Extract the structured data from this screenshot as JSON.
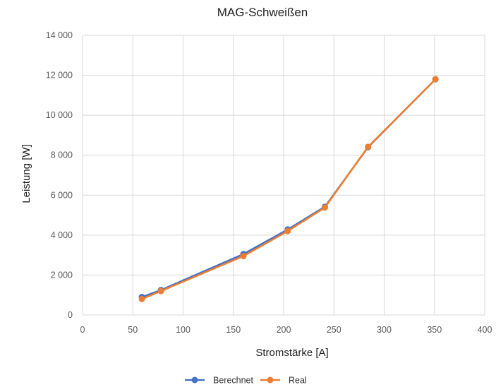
{
  "chart_data": {
    "type": "line",
    "title": "MAG-Schweißen",
    "xlabel": "Stromstärke [A]",
    "ylabel": "Leistung [W]",
    "xlim": [
      0,
      400
    ],
    "ylim": [
      0,
      14000
    ],
    "xticks": [
      0,
      50,
      100,
      150,
      200,
      250,
      300,
      350,
      400
    ],
    "yticks": [
      0,
      2000,
      4000,
      6000,
      8000,
      10000,
      12000,
      14000
    ],
    "xtick_labels": [
      "0",
      "50",
      "100",
      "150",
      "200",
      "250",
      "300",
      "350",
      "400"
    ],
    "ytick_labels": [
      "0",
      "2 000",
      "4 000",
      "6 000",
      "8 000",
      "10 000",
      "12 000",
      "14 000"
    ],
    "grid": true,
    "legend_position": "bottom",
    "series": [
      {
        "name": "Berechnet",
        "color": "#4472C4",
        "x": [
          59,
          78,
          160,
          204,
          241,
          284,
          351
        ],
        "y": [
          900,
          1250,
          3050,
          4280,
          5420,
          8400,
          11800
        ]
      },
      {
        "name": "Real",
        "color": "#ED7D31",
        "x": [
          59,
          78,
          160,
          204,
          241,
          284,
          351
        ],
        "y": [
          800,
          1200,
          2950,
          4200,
          5380,
          8420,
          11800
        ]
      }
    ]
  }
}
